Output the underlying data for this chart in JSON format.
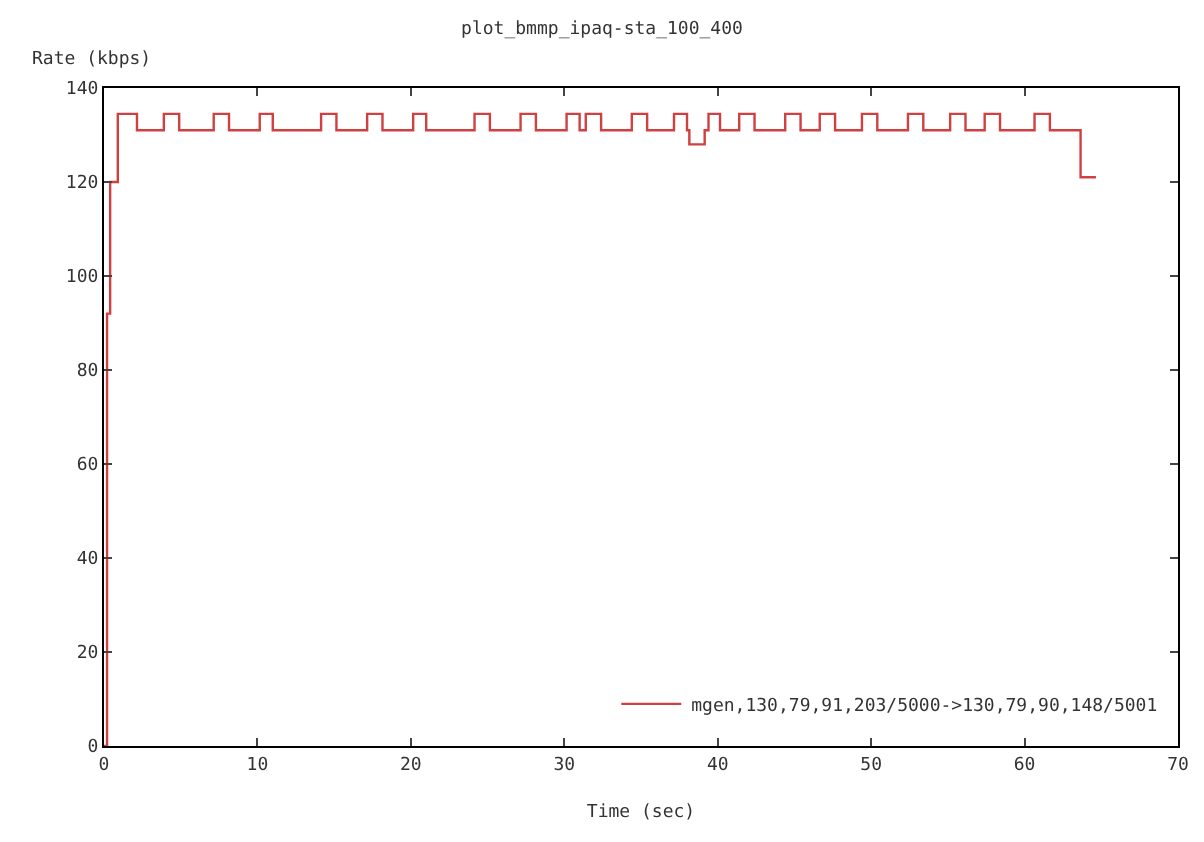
{
  "chart_data": {
    "type": "step",
    "title": "plot_bmmp_ipaq-sta_100_400",
    "xlabel": "Time (sec)",
    "ylabel": "Rate (kbps)",
    "xlim": [
      0,
      70
    ],
    "xticks": [
      0,
      10,
      20,
      30,
      40,
      50,
      60,
      70
    ],
    "ylim": [
      0,
      140
    ],
    "yticks": [
      0,
      20,
      40,
      60,
      80,
      100,
      120,
      140
    ],
    "legend": "bottom right",
    "marker": "none",
    "line_style": "solid",
    "series": [
      {
        "name": "mgen,130,79,91,203/5000->130,79,90,148/5001",
        "color": "#d04040",
        "x": [
          0,
          0.2,
          0.4,
          0.9,
          2.15,
          3.9,
          4.9,
          7.15,
          8.15,
          10.15,
          11,
          14.15,
          15.15,
          17.15,
          18.15,
          20.15,
          21,
          24.15,
          25.15,
          27.15,
          28.15,
          30.15,
          31,
          31.4,
          32.4,
          34.4,
          35.4,
          37.15,
          38,
          38.15,
          39.15,
          39.4,
          40.15,
          41.4,
          42.4,
          44.4,
          45.4,
          46.65,
          47.65,
          49.4,
          50.4,
          52.4,
          53.4,
          55.15,
          56.15,
          57.4,
          58.4,
          60.65,
          61.65,
          63.65,
          64.65
        ],
        "values": [
          0,
          92,
          120,
          134.5,
          131,
          134.5,
          131,
          134.5,
          131,
          134.5,
          131,
          134.5,
          131,
          134.5,
          131,
          134.5,
          131,
          134.5,
          131,
          134.5,
          131,
          134.5,
          131,
          134.5,
          131,
          134.5,
          131,
          134.5,
          131,
          128,
          131,
          134.5,
          131,
          134.5,
          131,
          134.5,
          131,
          134.5,
          131,
          134.5,
          131,
          134.5,
          131,
          134.5,
          131,
          134.5,
          131,
          134.5,
          131,
          121,
          121
        ]
      }
    ]
  }
}
